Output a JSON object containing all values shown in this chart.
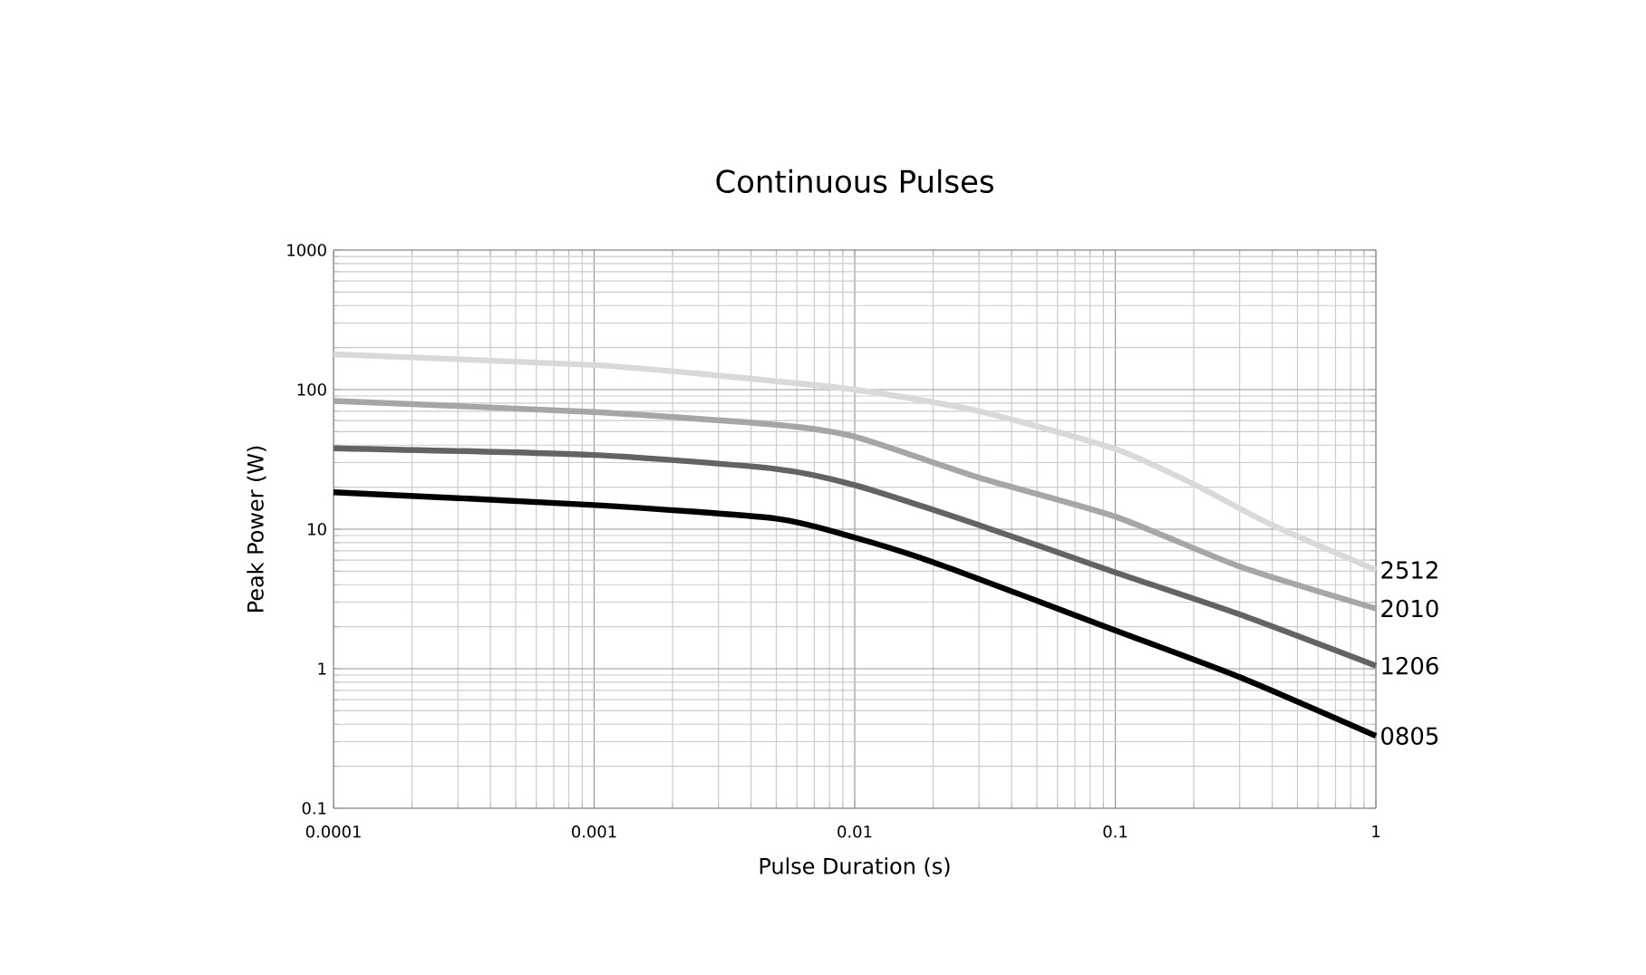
{
  "chart_data": {
    "type": "line",
    "title": "Continuous Pulses",
    "xlabel": "Pulse Duration (s)",
    "ylabel": "Peak Power (W)",
    "log": "xy",
    "grid": true,
    "legend": false,
    "marker": "none",
    "line_style": "solid",
    "xlim": [
      0.0001,
      1
    ],
    "ylim": [
      0.1,
      1000
    ],
    "xticks": [
      0.0001,
      0.001,
      0.01,
      0.1,
      1
    ],
    "yticks": [
      0.1,
      1,
      10,
      100,
      1000
    ],
    "series": [
      {
        "name": "2512",
        "color": "#d9d9d9",
        "x": [
          0.0001,
          0.001,
          0.003,
          0.01,
          0.03,
          0.1,
          0.2,
          0.4,
          1
        ],
        "values": [
          179,
          150,
          126,
          100,
          70,
          37.5,
          21,
          10.7,
          5.1
        ]
      },
      {
        "name": "2010",
        "color": "#a6a6a6",
        "x": [
          0.0001,
          0.001,
          0.005,
          0.01,
          0.03,
          0.1,
          0.3,
          1
        ],
        "values": [
          83,
          69,
          56,
          46,
          23.4,
          12.3,
          5.4,
          2.7
        ]
      },
      {
        "name": "1206",
        "color": "#636363",
        "x": [
          0.0001,
          0.001,
          0.005,
          0.01,
          0.03,
          0.1,
          0.3,
          1
        ],
        "values": [
          38,
          34,
          27,
          20.7,
          10.7,
          4.9,
          2.45,
          1.05
        ]
      },
      {
        "name": "0805",
        "color": "#000000",
        "x": [
          0.0001,
          0.001,
          0.005,
          0.01,
          0.02,
          0.05,
          0.1,
          0.3,
          1
        ],
        "values": [
          18.4,
          14.9,
          11.9,
          8.7,
          5.8,
          3.07,
          1.88,
          0.87,
          0.33
        ]
      }
    ]
  }
}
